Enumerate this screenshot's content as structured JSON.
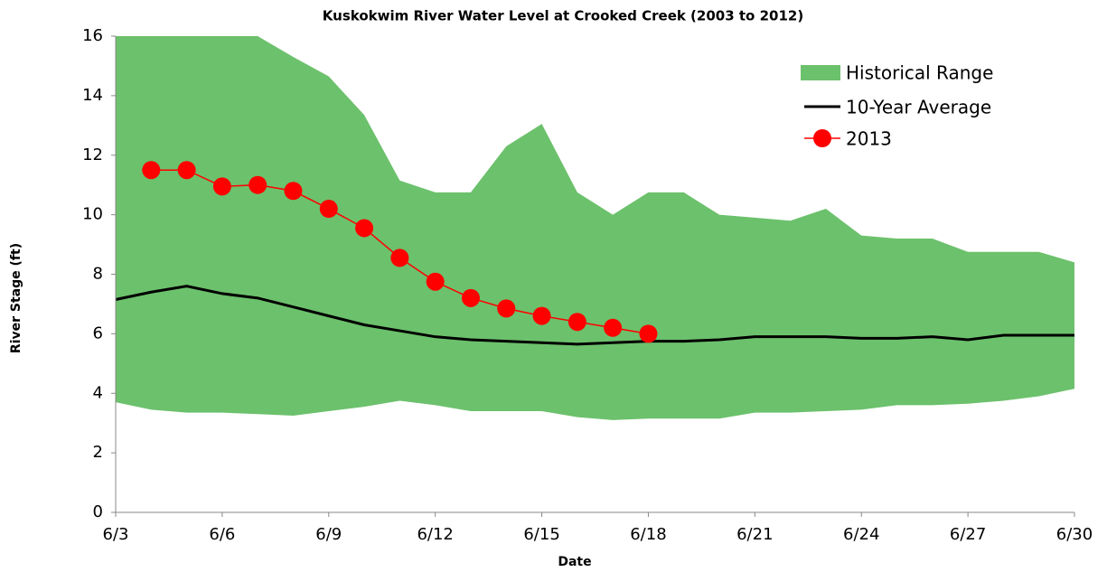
{
  "chart_data": {
    "type": "line",
    "title": "Kuskokwim River Water Level at Crooked Creek (2003 to 2012)",
    "x_label": "Date",
    "y_label": "River Stage (ft)",
    "categories": [
      "6/3",
      null,
      null,
      "6/6",
      null,
      null,
      "6/9",
      null,
      null,
      "6/12",
      null,
      null,
      "6/15",
      null,
      null,
      "6/18",
      null,
      null,
      "6/21",
      null,
      null,
      "6/24",
      null,
      null,
      "6/27",
      null,
      null,
      "6/30"
    ],
    "ylim": [
      0,
      16
    ],
    "yticks": [
      0,
      2,
      4,
      6,
      8,
      10,
      12,
      14,
      16
    ],
    "grid": false,
    "legend": "top-right",
    "series": [
      {
        "name": "Historical Range",
        "color": "#6cc16c",
        "kind": "range",
        "high": [
          16,
          16,
          16,
          16,
          16,
          15.3,
          14.65,
          13.35,
          11.15,
          10.75,
          10.75,
          12.3,
          13.05,
          10.75,
          10.0,
          10.75,
          10.75,
          10.0,
          9.9,
          9.8,
          10.2,
          9.3,
          9.2,
          9.2,
          8.75,
          8.75,
          8.75,
          8.4
        ],
        "low": [
          3.7,
          3.45,
          3.35,
          3.35,
          3.3,
          3.25,
          3.4,
          3.55,
          3.75,
          3.6,
          3.4,
          3.4,
          3.4,
          3.2,
          3.1,
          3.15,
          3.15,
          3.15,
          3.35,
          3.35,
          3.4,
          3.45,
          3.6,
          3.6,
          3.65,
          3.75,
          3.9,
          4.15
        ]
      },
      {
        "name": "10-Year Average",
        "color": "#000000",
        "kind": "line",
        "values": [
          7.15,
          7.4,
          7.6,
          7.35,
          7.2,
          6.9,
          6.6,
          6.3,
          6.1,
          5.9,
          5.8,
          5.75,
          5.7,
          5.65,
          5.7,
          5.75,
          5.75,
          5.8,
          5.9,
          5.9,
          5.9,
          5.85,
          5.85,
          5.9,
          5.8,
          5.95,
          5.95,
          5.95
        ]
      },
      {
        "name": "2013",
        "color": "#ff0000",
        "kind": "markers",
        "values": [
          null,
          11.5,
          11.5,
          10.95,
          11.0,
          10.8,
          10.2,
          9.55,
          8.55,
          7.75,
          7.2,
          6.85,
          6.6,
          6.4,
          6.2,
          6.0,
          null,
          null,
          null,
          null,
          null,
          null,
          null,
          null,
          null,
          null,
          null,
          null
        ]
      }
    ]
  }
}
